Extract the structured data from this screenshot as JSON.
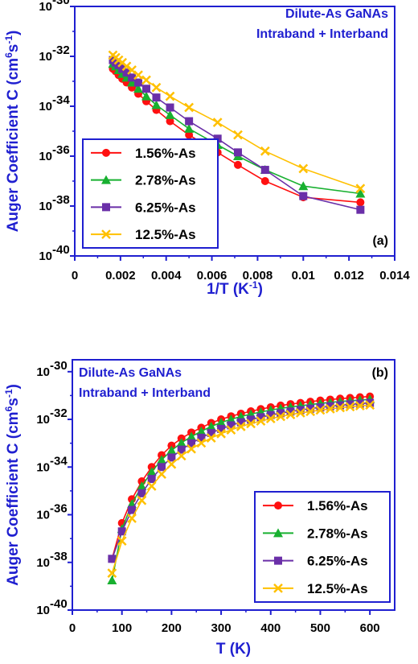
{
  "colors": {
    "axis": "#1f1fd0",
    "series": [
      "#ff1010",
      "#18b030",
      "#6a2fa8",
      "#ffc000"
    ]
  },
  "chart_data": [
    {
      "type": "line",
      "panel_label": "(a)",
      "annotation": [
        "Dilute-As GaNAs",
        "Intraband + Interband"
      ],
      "xlabel": "1/T (K",
      "xlabel_sup": "-1",
      "xlabel_end": ")",
      "ylabel": "Auger Coefficient C (cm",
      "ylabel_sup1": "6",
      "ylabel_mid": "s",
      "ylabel_sup2": "-1",
      "ylabel_end": ")",
      "xlim": [
        0,
        0.014
      ],
      "ylim_log10": [
        -40,
        -30
      ],
      "xticks": [
        "0",
        "0.002",
        "0.004",
        "0.006",
        "0.008",
        "0.01",
        "0.012",
        "0.014"
      ],
      "xtick_values": [
        0,
        0.002,
        0.004,
        0.006,
        0.008,
        0.01,
        0.012,
        0.014
      ],
      "yticks_exp": [
        -30,
        -32,
        -34,
        -36,
        -38,
        -40
      ],
      "legend_position": "bottom-left",
      "scale_y": "log",
      "series": [
        {
          "name": "1.56%-As",
          "marker": "circle",
          "x": [
            0.00167,
            0.00179,
            0.00192,
            0.00208,
            0.00227,
            0.0025,
            0.00278,
            0.00313,
            0.00357,
            0.00417,
            0.005,
            0.00625,
            0.00714,
            0.00833,
            0.01,
            0.0125
          ],
          "log10y": [
            -32.5,
            -32.6,
            -32.75,
            -32.9,
            -33.05,
            -33.25,
            -33.5,
            -33.8,
            -34.15,
            -34.6,
            -35.15,
            -35.85,
            -36.35,
            -37.0,
            -37.65,
            -37.85
          ]
        },
        {
          "name": "2.78%-As",
          "marker": "triangle",
          "x": [
            0.00167,
            0.00179,
            0.00192,
            0.00208,
            0.00227,
            0.0025,
            0.00278,
            0.00313,
            0.00357,
            0.00417,
            0.005,
            0.00625,
            0.00714,
            0.00833,
            0.01,
            0.0125
          ],
          "log10y": [
            -32.3,
            -32.4,
            -32.55,
            -32.7,
            -32.85,
            -33.05,
            -33.3,
            -33.6,
            -33.95,
            -34.35,
            -34.9,
            -35.55,
            -36.0,
            -36.55,
            -37.2,
            -37.5
          ]
        },
        {
          "name": "6.25%-As",
          "marker": "square",
          "x": [
            0.00167,
            0.00179,
            0.00192,
            0.00208,
            0.00227,
            0.0025,
            0.00278,
            0.00313,
            0.00357,
            0.00417,
            0.005,
            0.00625,
            0.00714,
            0.00833,
            0.01,
            0.0125
          ],
          "log10y": [
            -32.15,
            -32.25,
            -32.35,
            -32.5,
            -32.65,
            -32.85,
            -33.05,
            -33.3,
            -33.65,
            -34.05,
            -34.6,
            -35.3,
            -35.85,
            -36.55,
            -37.6,
            -38.15
          ]
        },
        {
          "name": "12.5%-As",
          "marker": "cross",
          "x": [
            0.00167,
            0.00179,
            0.00192,
            0.00208,
            0.00227,
            0.0025,
            0.00278,
            0.00313,
            0.00357,
            0.00417,
            0.005,
            0.00625,
            0.00714,
            0.00833,
            0.01,
            0.0125
          ],
          "log10y": [
            -31.95,
            -32.05,
            -32.15,
            -32.25,
            -32.4,
            -32.55,
            -32.75,
            -32.95,
            -33.25,
            -33.6,
            -34.05,
            -34.65,
            -35.15,
            -35.8,
            -36.5,
            -37.3
          ]
        }
      ]
    },
    {
      "type": "line",
      "panel_label": "(b)",
      "annotation": [
        "Dilute-As GaNAs",
        "Intraband + Interband"
      ],
      "xlabel": "T (K)",
      "ylabel": "Auger Coefficient C (cm",
      "ylabel_sup1": "6",
      "ylabel_mid": "s",
      "ylabel_sup2": "-1",
      "ylabel_end": ")",
      "xlim": [
        0,
        650
      ],
      "ylim_log10": [
        -40,
        -29.5
      ],
      "xticks": [
        "0",
        "100",
        "200",
        "300",
        "400",
        "500",
        "600"
      ],
      "xtick_values": [
        0,
        100,
        200,
        300,
        400,
        500,
        600
      ],
      "yticks_exp": [
        -30,
        -32,
        -34,
        -36,
        -38,
        -40
      ],
      "legend_position": "bottom-right",
      "scale_y": "log",
      "series": [
        {
          "name": "1.56%-As",
          "marker": "circle",
          "x": [
            80,
            100,
            120,
            140,
            160,
            180,
            200,
            220,
            240,
            260,
            280,
            300,
            320,
            340,
            360,
            380,
            400,
            420,
            440,
            460,
            480,
            500,
            520,
            540,
            560,
            580,
            600
          ],
          "log10y": [
            -37.85,
            -36.35,
            -35.35,
            -34.6,
            -34.0,
            -33.5,
            -33.1,
            -32.8,
            -32.55,
            -32.35,
            -32.15,
            -32.0,
            -31.87,
            -31.76,
            -31.66,
            -31.57,
            -31.49,
            -31.42,
            -31.36,
            -31.31,
            -31.26,
            -31.21,
            -31.17,
            -31.13,
            -31.1,
            -31.07,
            -31.04
          ]
        },
        {
          "name": "2.78%-As",
          "marker": "triangle",
          "x": [
            80,
            100,
            120,
            140,
            160,
            180,
            200,
            220,
            240,
            260,
            280,
            300,
            320,
            340,
            360,
            380,
            400,
            420,
            440,
            460,
            480,
            500,
            520,
            540,
            560,
            580,
            600
          ],
          "log10y": [
            -38.75,
            -36.6,
            -35.55,
            -34.8,
            -34.2,
            -33.7,
            -33.3,
            -32.98,
            -32.72,
            -32.5,
            -32.3,
            -32.13,
            -32.0,
            -31.88,
            -31.78,
            -31.69,
            -31.61,
            -31.54,
            -31.48,
            -31.43,
            -31.38,
            -31.33,
            -31.29,
            -31.25,
            -31.22,
            -31.19,
            -31.16
          ]
        },
        {
          "name": "6.25%-As",
          "marker": "square",
          "x": [
            80,
            100,
            120,
            140,
            160,
            180,
            200,
            220,
            240,
            260,
            280,
            300,
            320,
            340,
            360,
            380,
            400,
            420,
            440,
            460,
            480,
            500,
            520,
            540,
            560,
            580,
            600
          ],
          "log10y": [
            -37.85,
            -36.7,
            -35.8,
            -35.1,
            -34.5,
            -34.0,
            -33.6,
            -33.27,
            -33.0,
            -32.77,
            -32.57,
            -32.4,
            -32.25,
            -32.12,
            -32.01,
            -31.91,
            -31.82,
            -31.74,
            -31.67,
            -31.61,
            -31.55,
            -31.5,
            -31.45,
            -31.41,
            -31.37,
            -31.34,
            -31.31
          ]
        },
        {
          "name": "12.5%-As",
          "marker": "cross",
          "x": [
            80,
            100,
            120,
            140,
            160,
            180,
            200,
            220,
            240,
            260,
            280,
            300,
            320,
            340,
            360,
            380,
            400,
            420,
            440,
            460,
            480,
            500,
            520,
            540,
            560,
            580,
            600
          ],
          "log10y": [
            -38.45,
            -37.1,
            -36.15,
            -35.4,
            -34.8,
            -34.3,
            -33.88,
            -33.53,
            -33.24,
            -32.99,
            -32.78,
            -32.6,
            -32.44,
            -32.3,
            -32.18,
            -32.07,
            -31.97,
            -31.88,
            -31.8,
            -31.73,
            -31.67,
            -31.61,
            -31.56,
            -31.51,
            -31.47,
            -31.43,
            -31.4
          ]
        }
      ]
    }
  ]
}
